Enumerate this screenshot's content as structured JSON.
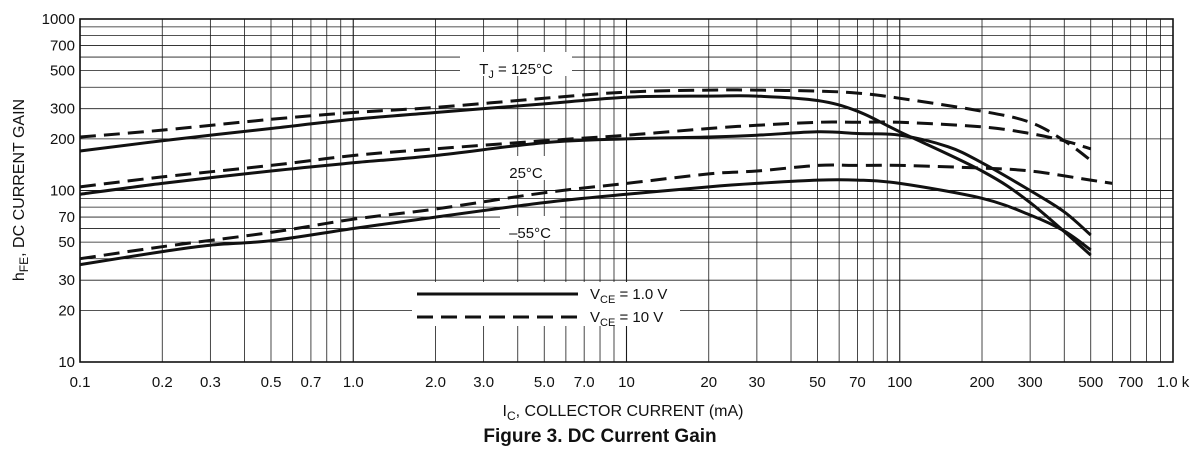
{
  "chart_data": {
    "type": "line",
    "title": "Figure 3. DC Current Gain",
    "xlabel_main": "I",
    "xlabel_sub": "C",
    "xlabel_rest": ", COLLECTOR CURRENT (mA)",
    "ylabel_main": "h",
    "ylabel_sub": "FE",
    "ylabel_rest": ", DC CURRENT GAIN",
    "x_scale": "log",
    "y_scale": "log",
    "xlim": [
      0.1,
      1000
    ],
    "ylim": [
      10,
      1000
    ],
    "grid": true,
    "x_ticks": [
      {
        "value": 0.1,
        "label": "0.1"
      },
      {
        "value": 0.2,
        "label": "0.2"
      },
      {
        "value": 0.3,
        "label": "0.3"
      },
      {
        "value": 0.5,
        "label": "0.5"
      },
      {
        "value": 0.7,
        "label": "0.7"
      },
      {
        "value": 1,
        "label": "1.0"
      },
      {
        "value": 2,
        "label": "2.0"
      },
      {
        "value": 3,
        "label": "3.0"
      },
      {
        "value": 5,
        "label": "5.0"
      },
      {
        "value": 7,
        "label": "7.0"
      },
      {
        "value": 10,
        "label": "10"
      },
      {
        "value": 20,
        "label": "20"
      },
      {
        "value": 30,
        "label": "30"
      },
      {
        "value": 50,
        "label": "50"
      },
      {
        "value": 70,
        "label": "70"
      },
      {
        "value": 100,
        "label": "100"
      },
      {
        "value": 200,
        "label": "200"
      },
      {
        "value": 300,
        "label": "300"
      },
      {
        "value": 500,
        "label": "500"
      },
      {
        "value": 700,
        "label": "700"
      },
      {
        "value": 1000,
        "label": "1.0 k"
      }
    ],
    "y_ticks": [
      {
        "value": 10,
        "label": "10"
      },
      {
        "value": 20,
        "label": "20"
      },
      {
        "value": 30,
        "label": "30"
      },
      {
        "value": 50,
        "label": "50"
      },
      {
        "value": 70,
        "label": "70"
      },
      {
        "value": 100,
        "label": "100"
      },
      {
        "value": 200,
        "label": "200"
      },
      {
        "value": 300,
        "label": "300"
      },
      {
        "value": 500,
        "label": "500"
      },
      {
        "value": 700,
        "label": "700"
      },
      {
        "value": 1000,
        "label": "1000"
      }
    ],
    "annotations": [
      {
        "id": "tj-125",
        "main": "T",
        "sub": "J",
        "rest": " = 125°C"
      },
      {
        "id": "t-25",
        "main": "25°C",
        "sub": "",
        "rest": ""
      },
      {
        "id": "t-55",
        "main": "–55°C",
        "sub": "",
        "rest": ""
      }
    ],
    "legend": {
      "placement": "lower-center",
      "entries": [
        {
          "style": "solid",
          "main": "V",
          "sub": "CE",
          "rest": " = 1.0 V"
        },
        {
          "style": "dashed",
          "main": "V",
          "sub": "CE",
          "rest": " = 10 V"
        }
      ]
    },
    "series": [
      {
        "name": "TJ = 125°C, VCE = 1.0 V",
        "style": "solid",
        "x": [
          0.1,
          0.2,
          0.5,
          1,
          2,
          5,
          10,
          20,
          30,
          50,
          70,
          100,
          200,
          300,
          500
        ],
        "y": [
          170,
          195,
          230,
          260,
          285,
          320,
          350,
          355,
          355,
          335,
          290,
          220,
          130,
          85,
          42
        ]
      },
      {
        "name": "TJ = 125°C, VCE = 10 V",
        "style": "dashed",
        "x": [
          0.1,
          0.2,
          0.5,
          1,
          2,
          5,
          10,
          20,
          30,
          50,
          70,
          100,
          200,
          300,
          400,
          500
        ],
        "y": [
          205,
          225,
          260,
          285,
          305,
          345,
          375,
          385,
          385,
          380,
          370,
          345,
          290,
          250,
          195,
          150
        ]
      },
      {
        "name": "25°C, VCE = 1.0 V",
        "style": "solid",
        "x": [
          0.1,
          0.2,
          0.5,
          1,
          2,
          5,
          10,
          20,
          30,
          50,
          70,
          100,
          150,
          200,
          300,
          400,
          500
        ],
        "y": [
          95,
          110,
          130,
          145,
          160,
          190,
          200,
          205,
          210,
          220,
          215,
          210,
          180,
          145,
          100,
          75,
          55
        ]
      },
      {
        "name": "25°C, VCE = 10 V",
        "style": "dashed",
        "x": [
          0.1,
          0.2,
          0.5,
          1,
          2,
          5,
          10,
          20,
          30,
          50,
          70,
          100,
          200,
          300,
          400,
          500
        ],
        "y": [
          105,
          120,
          140,
          160,
          175,
          195,
          210,
          230,
          240,
          250,
          250,
          250,
          235,
          215,
          195,
          175
        ]
      },
      {
        "name": "–55°C, VCE = 1.0 V",
        "style": "solid",
        "x": [
          0.1,
          0.2,
          0.3,
          0.5,
          1,
          2,
          5,
          10,
          20,
          30,
          50,
          70,
          100,
          200,
          300,
          400,
          500
        ],
        "y": [
          37,
          44,
          48,
          51,
          60,
          70,
          85,
          95,
          105,
          110,
          115,
          115,
          110,
          90,
          72,
          58,
          45
        ]
      },
      {
        "name": "–55°C, VCE = 10 V",
        "style": "dashed",
        "x": [
          0.1,
          0.2,
          0.5,
          1,
          2,
          5,
          10,
          20,
          30,
          50,
          70,
          100,
          200,
          300,
          500,
          600
        ],
        "y": [
          40,
          47,
          57,
          68,
          78,
          97,
          110,
          125,
          130,
          140,
          140,
          140,
          135,
          130,
          115,
          110
        ]
      }
    ]
  }
}
